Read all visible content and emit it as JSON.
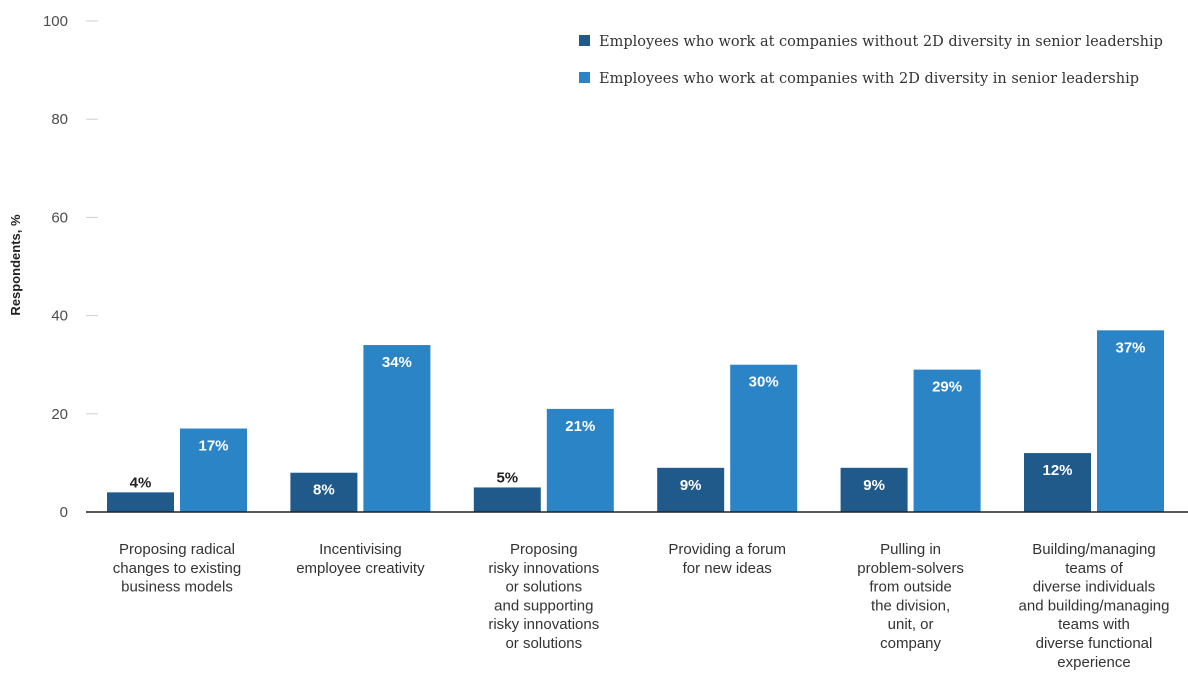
{
  "chart_data": {
    "type": "bar",
    "ylabel": "Respondents, %",
    "ylim": [
      0,
      100
    ],
    "yticks": [
      "0",
      "20",
      "40",
      "60",
      "80",
      "100"
    ],
    "legend_position": "top-right",
    "categories": [
      [
        "Proposing radical",
        "changes to existing",
        "business models"
      ],
      [
        "Incentivising",
        "employee creativity"
      ],
      [
        "Proposing",
        "risky innovations",
        "or solutions",
        "and supporting",
        "risky innovations",
        "or solutions"
      ],
      [
        "Providing a forum",
        "for new ideas"
      ],
      [
        "Pulling in",
        "problem-solvers",
        "from outside",
        "the division,",
        "unit, or",
        "company"
      ],
      [
        "Building/managing",
        "teams of",
        "diverse individuals",
        "and building/managing",
        "teams with",
        "diverse functional",
        "experience"
      ]
    ],
    "series": [
      {
        "name": "Employees who work at companies without 2D diversity in senior leadership",
        "color": "#1f5a8a",
        "values": [
          4,
          8,
          5,
          9,
          9,
          12
        ],
        "labels": [
          "4%",
          "8%",
          "5%",
          "9%",
          "9%",
          "12%"
        ]
      },
      {
        "name": "Employees who work at companies with 2D diversity in senior leadership",
        "color": "#2b84c6",
        "values": [
          17,
          34,
          21,
          30,
          29,
          37
        ],
        "labels": [
          "17%",
          "34%",
          "21%",
          "30%",
          "29%",
          "37%"
        ]
      }
    ]
  }
}
